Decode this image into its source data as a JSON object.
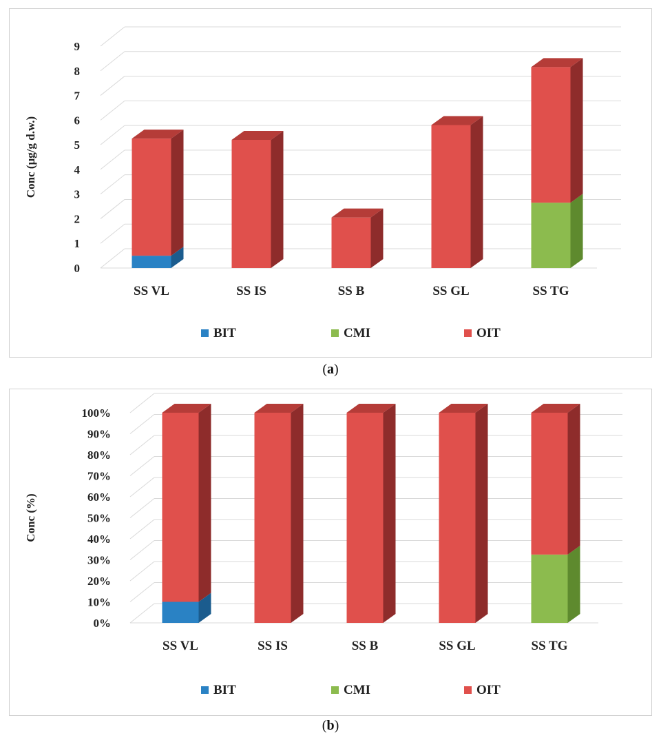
{
  "colors": {
    "BIT": "#2a82c4",
    "BIT_side": "#1b5c8e",
    "BIT_top": "#2470aa",
    "CMI": "#8cbb4e",
    "CMI_side": "#5e8a2e",
    "CMI_top": "#77a63c",
    "OIT": "#e0504c",
    "OIT_side": "#8e2c2b",
    "OIT_top": "#b53c38",
    "grid": "#d9d9d9"
  },
  "captions": {
    "a": "a",
    "b": "b"
  },
  "chart_data": [
    {
      "id": "a",
      "type": "bar",
      "stacked": true,
      "ylabel": "Conc (µg/g d.w.)",
      "ylim": [
        0,
        9
      ],
      "yticks": [
        "0",
        "1",
        "2",
        "3",
        "4",
        "5",
        "6",
        "7",
        "8",
        "9"
      ],
      "categories": [
        "SS VL",
        "SS IS",
        "SS B",
        "SS GL",
        "SS TG"
      ],
      "series": [
        {
          "name": "BIT",
          "values": [
            0.5,
            0,
            0,
            0,
            0
          ]
        },
        {
          "name": "CMI",
          "values": [
            0,
            0,
            0,
            0,
            2.65
          ]
        },
        {
          "name": "OIT",
          "values": [
            4.75,
            5.2,
            2.05,
            5.8,
            5.5
          ]
        }
      ],
      "legend": [
        "BIT",
        "CMI",
        "OIT"
      ]
    },
    {
      "id": "b",
      "type": "bar",
      "stacked": true,
      "ylabel": "Conc (%)",
      "ylim": [
        0,
        100
      ],
      "yticks": [
        "0%",
        "10%",
        "20%",
        "30%",
        "40%",
        "50%",
        "60%",
        "70%",
        "80%",
        "90%",
        "100%"
      ],
      "categories": [
        "SS VL",
        "SS IS",
        "SS B",
        "SS GL",
        "SS TG"
      ],
      "series": [
        {
          "name": "BIT",
          "values": [
            10,
            0,
            0,
            0,
            0
          ]
        },
        {
          "name": "CMI",
          "values": [
            0,
            0,
            0,
            0,
            32.5
          ]
        },
        {
          "name": "OIT",
          "values": [
            90,
            100,
            100,
            100,
            67.5
          ]
        }
      ],
      "legend": [
        "BIT",
        "CMI",
        "OIT"
      ]
    }
  ]
}
